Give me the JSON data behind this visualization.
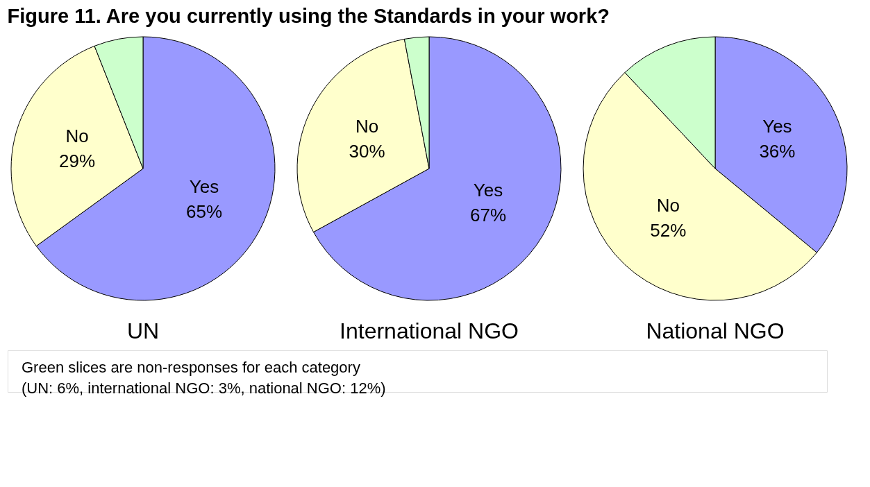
{
  "chart_data": [
    {
      "type": "pie",
      "title": "Figure 11. Are you currently using the Standards in your work?",
      "xlabel": "UN",
      "categories": [
        "Yes",
        "No",
        null
      ],
      "values": [
        65,
        29,
        6
      ],
      "value_labels": [
        "65%",
        "29%",
        null
      ],
      "colors": [
        "#9999ff",
        "#ffffcc",
        "#ccffcc"
      ],
      "annotations": [
        "Green slices are non-responses for each category",
        "(UN: 6%, international NGO: 3%, national NGO: 12%)"
      ]
    },
    {
      "type": "pie",
      "xlabel": "International NGO",
      "categories": [
        "Yes",
        "No",
        null
      ],
      "values": [
        67,
        30,
        3
      ],
      "value_labels": [
        "67%",
        "30%",
        null
      ],
      "colors": [
        "#9999ff",
        "#ffffcc",
        "#ccffcc"
      ]
    },
    {
      "type": "pie",
      "xlabel": "National NGO",
      "categories": [
        "Yes",
        "No",
        null
      ],
      "values": [
        36,
        52,
        12
      ],
      "value_labels": [
        "36%",
        "52%",
        null
      ],
      "colors": [
        "#9999ff",
        "#ffffcc",
        "#ccffcc"
      ]
    }
  ]
}
